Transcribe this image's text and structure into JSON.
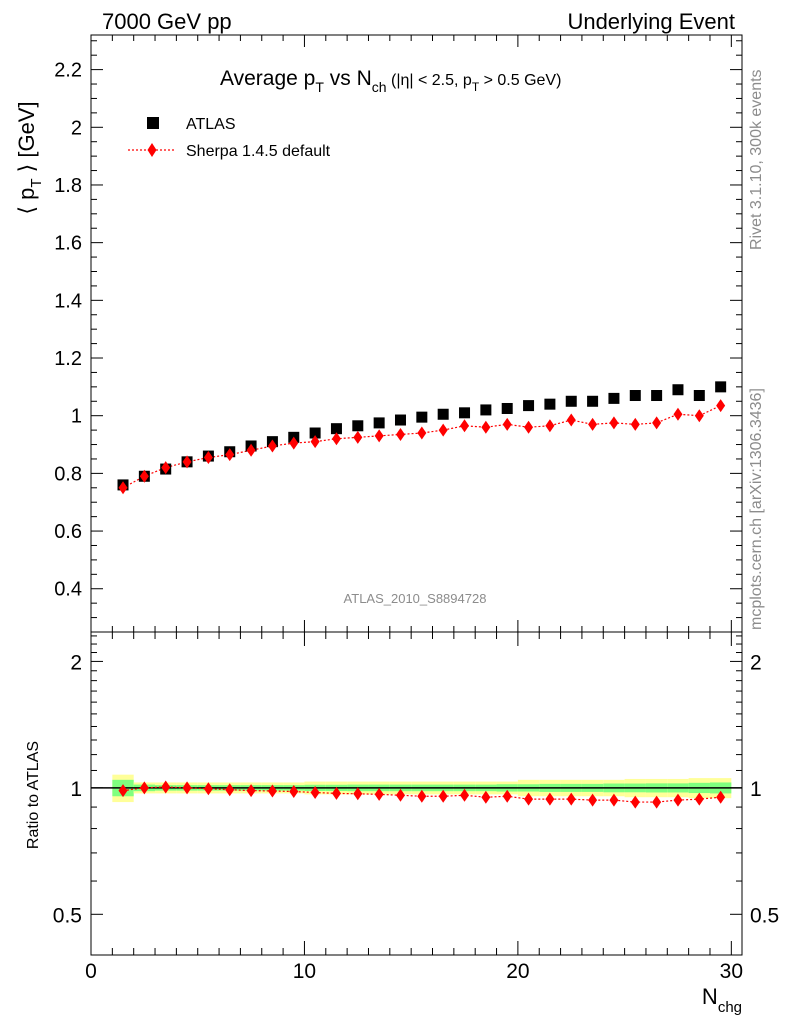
{
  "header": {
    "left": "7000 GeV pp",
    "right": "Underlying Event"
  },
  "side_text": {
    "rivet": "Rivet 3.1.10,  300k events",
    "mcplots": "mcplots.cern.ch [arXiv:1306.3436]"
  },
  "chart_data": [
    {
      "type": "scatter",
      "title": {
        "main": "Average p",
        "main_sub": "T",
        "vs": " vs N",
        "vs_sub": "ch",
        "cuts1": " (|η| < 2.5, p",
        "cuts_sub": "T",
        "cuts2": " > 0.5 GeV)"
      },
      "ylabel": "⟨ p_T ⟩ [GeV]",
      "ylabel_parts": {
        "a": "⟨ p",
        "sub": "T",
        "b": " ⟩ [GeV]"
      },
      "watermark": "ATLAS_2010_S8894728",
      "xlim": [
        0,
        30.5
      ],
      "ylim": [
        0.25,
        2.32
      ],
      "yticks": [
        "0.4",
        "0.6",
        "0.8",
        "1",
        "1.2",
        "1.4",
        "1.6",
        "1.8",
        "2",
        "2.2"
      ],
      "legend_position": "top-left",
      "series": [
        {
          "name": "ATLAS",
          "marker": "square",
          "color": "#000000",
          "x": [
            1.5,
            2.5,
            3.5,
            4.5,
            5.5,
            6.5,
            7.5,
            8.5,
            9.5,
            10.5,
            11.5,
            12.5,
            13.5,
            14.5,
            15.5,
            16.5,
            17.5,
            18.5,
            19.5,
            20.5,
            21.5,
            22.5,
            23.5,
            24.5,
            25.5,
            26.5,
            27.5,
            28.5,
            29.5
          ],
          "y": [
            0.76,
            0.79,
            0.815,
            0.84,
            0.86,
            0.875,
            0.895,
            0.91,
            0.925,
            0.94,
            0.955,
            0.965,
            0.975,
            0.985,
            0.995,
            1.005,
            1.01,
            1.02,
            1.025,
            1.035,
            1.04,
            1.05,
            1.05,
            1.06,
            1.07,
            1.07,
            1.09,
            1.07,
            1.1
          ]
        },
        {
          "name": "Sherpa 1.4.5 default",
          "marker": "diamond",
          "color": "#ff0000",
          "x": [
            1.5,
            2.5,
            3.5,
            4.5,
            5.5,
            6.5,
            7.5,
            8.5,
            9.5,
            10.5,
            11.5,
            12.5,
            13.5,
            14.5,
            15.5,
            16.5,
            17.5,
            18.5,
            19.5,
            20.5,
            21.5,
            22.5,
            23.5,
            24.5,
            25.5,
            26.5,
            27.5,
            28.5,
            29.5
          ],
          "y": [
            0.75,
            0.79,
            0.82,
            0.84,
            0.855,
            0.865,
            0.88,
            0.895,
            0.905,
            0.91,
            0.92,
            0.925,
            0.93,
            0.935,
            0.94,
            0.95,
            0.965,
            0.96,
            0.97,
            0.96,
            0.965,
            0.985,
            0.97,
            0.975,
            0.97,
            0.975,
            1.005,
            1.0,
            1.035
          ]
        }
      ]
    },
    {
      "type": "scatter",
      "ylabel": "Ratio to ATLAS",
      "xlabel": "N",
      "xlabel_sub": "chg",
      "xlim": [
        0,
        30.5
      ],
      "ylim": [
        0.4,
        2.35
      ],
      "ylog": true,
      "xticks": [
        "0",
        "10",
        "20",
        "30"
      ],
      "yticks": [
        "0.5",
        "1",
        "2"
      ],
      "reference_line": 1,
      "band_stat_color": "#7fff7f",
      "band_total_color": "#ffff99",
      "band_total_halfwidth": [
        0.075,
        0.03,
        0.03,
        0.03,
        0.03,
        0.03,
        0.03,
        0.03,
        0.03,
        0.035,
        0.035,
        0.035,
        0.035,
        0.035,
        0.035,
        0.035,
        0.035,
        0.035,
        0.035,
        0.045,
        0.045,
        0.045,
        0.045,
        0.045,
        0.05,
        0.05,
        0.05,
        0.055,
        0.055
      ],
      "band_stat_halfwidth": [
        0.045,
        0.018,
        0.015,
        0.015,
        0.015,
        0.015,
        0.015,
        0.015,
        0.015,
        0.017,
        0.017,
        0.018,
        0.018,
        0.018,
        0.018,
        0.018,
        0.018,
        0.018,
        0.02,
        0.02,
        0.022,
        0.022,
        0.022,
        0.024,
        0.024,
        0.025,
        0.025,
        0.028,
        0.03
      ],
      "series": [
        {
          "name": "Sherpa 1.4.5 default",
          "marker": "diamond",
          "color": "#ff0000",
          "x": [
            1.5,
            2.5,
            3.5,
            4.5,
            5.5,
            6.5,
            7.5,
            8.5,
            9.5,
            10.5,
            11.5,
            12.5,
            13.5,
            14.5,
            15.5,
            16.5,
            17.5,
            18.5,
            19.5,
            20.5,
            21.5,
            22.5,
            23.5,
            24.5,
            25.5,
            26.5,
            27.5,
            28.5,
            29.5
          ],
          "y": [
            0.985,
            1.0,
            1.005,
            1.0,
            0.995,
            0.99,
            0.985,
            0.983,
            0.98,
            0.975,
            0.97,
            0.968,
            0.965,
            0.96,
            0.955,
            0.955,
            0.96,
            0.95,
            0.955,
            0.94,
            0.94,
            0.94,
            0.935,
            0.935,
            0.925,
            0.925,
            0.935,
            0.94,
            0.95
          ]
        }
      ]
    }
  ]
}
